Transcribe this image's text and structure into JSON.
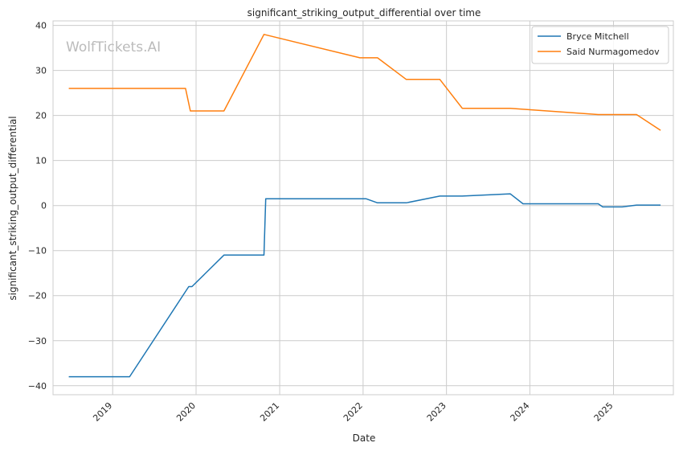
{
  "watermark": "WolfTickets.AI",
  "chart_data": {
    "type": "line",
    "title": "significant_striking_output_differential over time",
    "xlabel": "Date",
    "ylabel": "significant_striking_output_differential",
    "x_ticks": [
      "2019",
      "2020",
      "2021",
      "2022",
      "2023",
      "2024",
      "2025"
    ],
    "y_ticks": [
      -40,
      -30,
      -20,
      -10,
      0,
      10,
      20,
      30,
      40
    ],
    "xlim": [
      "2018-04-15",
      "2025-09-20"
    ],
    "ylim": [
      -42,
      41
    ],
    "grid": true,
    "legend_position": "top-right",
    "series": [
      {
        "name": "Bryce Mitchell",
        "color": "#1f77b4",
        "x": [
          "2018-06-23",
          "2019-03-16",
          "2019-11-30",
          "2019-12-14",
          "2020-05-02",
          "2020-10-24",
          "2020-11-01",
          "2022-01-15",
          "2022-03-05",
          "2022-07-09",
          "2022-12-03",
          "2023-03-11",
          "2023-10-07",
          "2023-12-02",
          "2024-10-26",
          "2024-11-15",
          "2025-02-08",
          "2025-04-12",
          "2025-07-26"
        ],
        "values": [
          -38,
          -38,
          -18,
          -18,
          -11,
          -11,
          1.5,
          1.5,
          0.6,
          0.6,
          2.1,
          2.1,
          2.6,
          0.4,
          0.4,
          -0.3,
          -0.3,
          0.1,
          0.1
        ]
      },
      {
        "name": "Said Nurmagomedov",
        "color": "#ff7f0e",
        "x": [
          "2018-06-23",
          "2019-11-16",
          "2019-12-07",
          "2020-05-02",
          "2020-10-24",
          "2021-12-18",
          "2022-03-05",
          "2022-07-09",
          "2022-12-03",
          "2023-03-11",
          "2023-10-07",
          "2024-10-26",
          "2025-04-12",
          "2025-07-26"
        ],
        "values": [
          26,
          26,
          21,
          21,
          38,
          32.8,
          32.8,
          28,
          28,
          21.6,
          21.6,
          20.2,
          20.2,
          16.7
        ]
      }
    ]
  }
}
